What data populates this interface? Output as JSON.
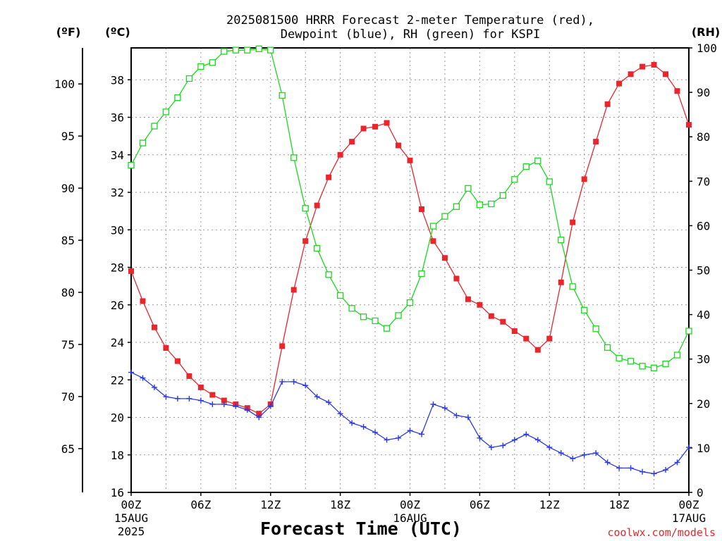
{
  "chart_data": {
    "type": "line",
    "title_line1": "2025081500 HRRR Forecast 2-meter Temperature (red),",
    "title_line2": "Dewpoint (blue), RH (green) for KSPI",
    "xlabel": "Forecast Time (UTC)",
    "credit": "coolwx.com/models",
    "left_unit_f": "(ºF)",
    "left_unit_c": "(ºC)",
    "right_unit": "(RH)",
    "x_forecast_hours": [
      0,
      1,
      2,
      3,
      4,
      5,
      6,
      7,
      8,
      9,
      10,
      11,
      12,
      13,
      14,
      15,
      16,
      17,
      18,
      19,
      20,
      21,
      22,
      23,
      24,
      25,
      26,
      27,
      28,
      29,
      30,
      31,
      32,
      33,
      34,
      35,
      36,
      37,
      38,
      39,
      40,
      41,
      42,
      43,
      44,
      45,
      46,
      47,
      48
    ],
    "xlim": [
      0,
      48
    ],
    "x_ticks": [
      {
        "hour": 0,
        "line1": "00Z",
        "line2": "15AUG",
        "line3": "2025"
      },
      {
        "hour": 6,
        "line1": "06Z",
        "line2": "",
        "line3": ""
      },
      {
        "hour": 12,
        "line1": "12Z",
        "line2": "",
        "line3": ""
      },
      {
        "hour": 18,
        "line1": "18Z",
        "line2": "",
        "line3": ""
      },
      {
        "hour": 24,
        "line1": "00Z",
        "line2": "16AUG",
        "line3": ""
      },
      {
        "hour": 30,
        "line1": "06Z",
        "line2": "",
        "line3": ""
      },
      {
        "hour": 36,
        "line1": "12Z",
        "line2": "",
        "line3": ""
      },
      {
        "hour": 42,
        "line1": "18Z",
        "line2": "",
        "line3": ""
      },
      {
        "hour": 48,
        "line1": "00Z",
        "line2": "17AUG",
        "line3": ""
      }
    ],
    "celsius_axis": {
      "ylim": [
        16,
        39.7
      ],
      "ticks": [
        "16",
        "18",
        "20",
        "22",
        "24",
        "26",
        "28",
        "30",
        "32",
        "34",
        "36",
        "38"
      ]
    },
    "fahrenheit_axis": {
      "ticks": [
        "65",
        "70",
        "75",
        "80",
        "85",
        "90",
        "95",
        "100"
      ]
    },
    "rh_axis": {
      "ylim": [
        0,
        100
      ],
      "ticks": [
        "0",
        "10",
        "20",
        "30",
        "40",
        "50",
        "60",
        "70",
        "80",
        "90",
        "100"
      ]
    },
    "grid": true,
    "series": [
      {
        "name": "2-meter Temperature",
        "color": "#e8262c",
        "marker": "filled-square",
        "axis": "celsius",
        "values": [
          27.8,
          26.2,
          24.8,
          23.7,
          23.0,
          22.2,
          21.6,
          21.2,
          20.9,
          20.7,
          20.5,
          20.2,
          20.7,
          23.8,
          26.8,
          29.4,
          31.3,
          32.8,
          34.0,
          34.7,
          35.4,
          35.5,
          35.7,
          34.5,
          33.7,
          31.1,
          29.4,
          28.5,
          27.4,
          26.3,
          26.0,
          25.4,
          25.1,
          24.6,
          24.2,
          23.6,
          24.2,
          27.2,
          30.4,
          32.7,
          34.7,
          36.7,
          37.8,
          38.3,
          38.7,
          38.8,
          38.3,
          37.4,
          35.6
        ]
      },
      {
        "name": "Dewpoint",
        "color": "#2a39e8",
        "marker": "plus",
        "axis": "celsius",
        "values": [
          22.4,
          22.1,
          21.6,
          21.1,
          21.0,
          21.0,
          20.9,
          20.7,
          20.7,
          20.6,
          20.4,
          20.0,
          20.6,
          21.9,
          21.9,
          21.7,
          21.1,
          20.8,
          20.2,
          19.7,
          19.5,
          19.2,
          18.8,
          18.9,
          19.3,
          19.1,
          20.7,
          20.5,
          20.1,
          20.0,
          18.9,
          18.4,
          18.5,
          18.8,
          19.1,
          18.8,
          18.4,
          18.1,
          17.8,
          18.0,
          18.1,
          17.6,
          17.3,
          17.3,
          17.1,
          17.0,
          17.2,
          17.6,
          18.4
        ]
      },
      {
        "name": "RH",
        "color": "#19d91e",
        "marker": "open-square",
        "axis": "rh",
        "values": [
          73.6,
          78.6,
          82.4,
          85.6,
          88.8,
          93.1,
          95.8,
          96.7,
          99.2,
          99.5,
          99.5,
          99.8,
          99.5,
          89.3,
          75.3,
          63.9,
          54.9,
          49.0,
          44.3,
          41.4,
          39.5,
          38.6,
          36.9,
          39.8,
          42.7,
          49.2,
          59.9,
          62.1,
          64.3,
          68.4,
          64.7,
          64.9,
          66.8,
          70.4,
          73.3,
          74.6,
          69.9,
          56.8,
          46.3,
          41.0,
          36.8,
          32.6,
          30.2,
          29.5,
          28.4,
          28.0,
          28.9,
          30.9,
          36.3
        ]
      }
    ]
  }
}
